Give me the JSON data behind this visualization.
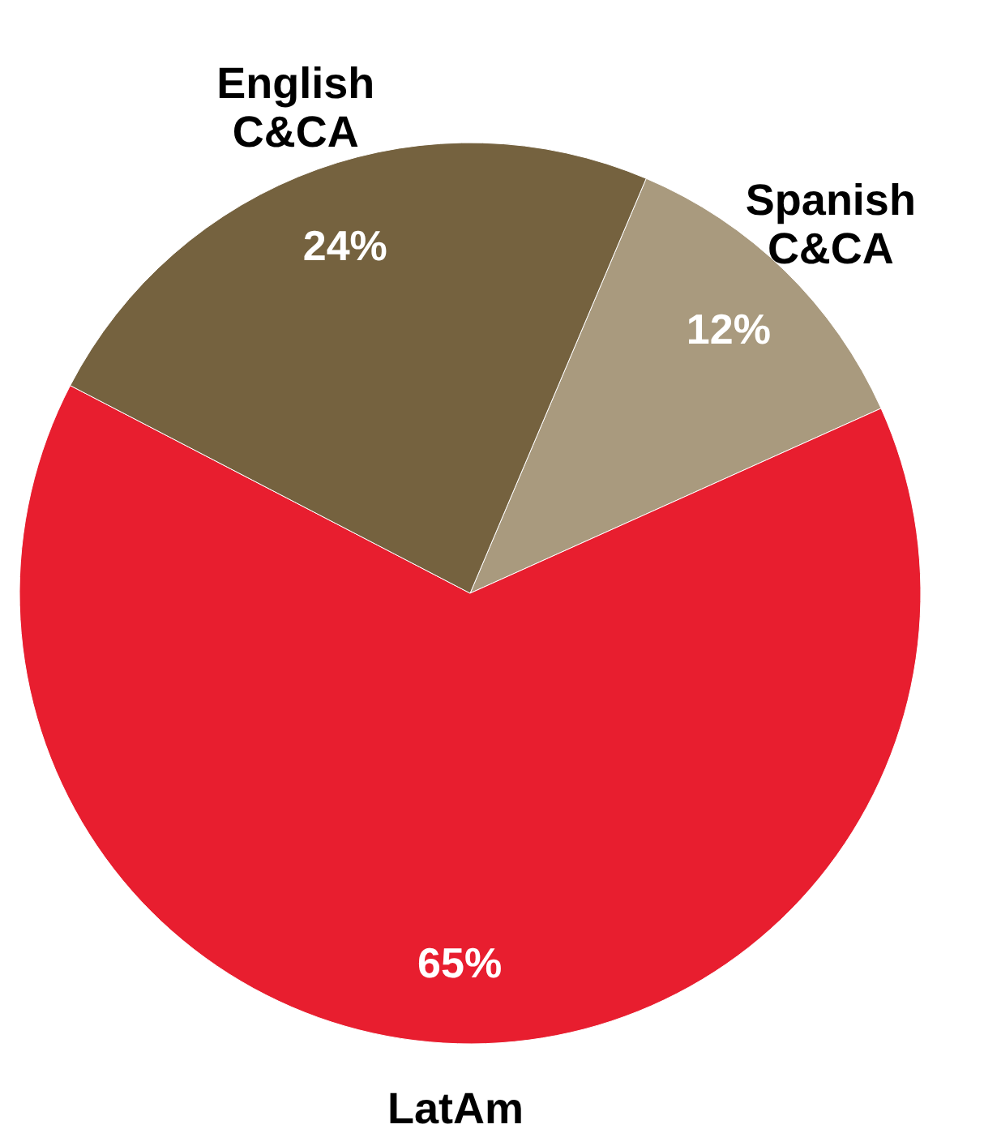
{
  "chart_data": {
    "type": "pie",
    "categories": [
      "Spanish C&CA",
      "LatAm",
      "English C&CA"
    ],
    "values": [
      12,
      65,
      24
    ],
    "value_labels": [
      "12%",
      "65%",
      "24%"
    ],
    "colors": [
      "#a99a7e",
      "#e81e2f",
      "#75623f"
    ]
  }
}
